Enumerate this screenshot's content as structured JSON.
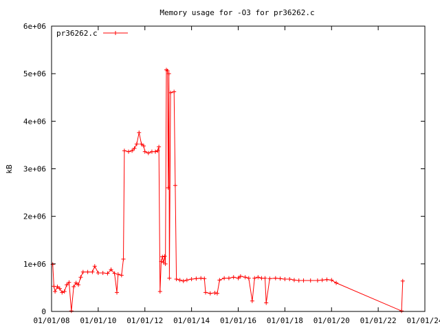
{
  "chart_data": {
    "type": "line",
    "title": "Memory usage for -O3 for pr36262.c",
    "xlabel": "",
    "ylabel": "kB",
    "x_ticks": [
      "01/01/08",
      "01/01/10",
      "01/01/12",
      "01/01/14",
      "01/01/16",
      "01/01/18",
      "01/01/20",
      "01/01/22",
      "01/01/24"
    ],
    "y_ticks": [
      "0",
      "1e+06",
      "2e+06",
      "3e+06",
      "4e+06",
      "5e+06",
      "6e+06"
    ],
    "xlim": [
      2008,
      2024
    ],
    "ylim": [
      0,
      6000000
    ],
    "grid": false,
    "legend_position": "top-left",
    "series": [
      {
        "name": "pr36262.c",
        "color": "#ff0000",
        "marker": "plus",
        "points": [
          [
            2008.05,
            990000
          ],
          [
            2008.1,
            530000
          ],
          [
            2008.15,
            420000
          ],
          [
            2008.25,
            520000
          ],
          [
            2008.35,
            480000
          ],
          [
            2008.45,
            400000
          ],
          [
            2008.55,
            420000
          ],
          [
            2008.65,
            560000
          ],
          [
            2008.75,
            610000
          ],
          [
            2008.85,
            10000
          ],
          [
            2008.95,
            520000
          ],
          [
            2009.05,
            600000
          ],
          [
            2009.15,
            560000
          ],
          [
            2009.25,
            720000
          ],
          [
            2009.35,
            830000
          ],
          [
            2009.55,
            830000
          ],
          [
            2009.75,
            830000
          ],
          [
            2009.85,
            950000
          ],
          [
            2010.0,
            810000
          ],
          [
            2010.2,
            810000
          ],
          [
            2010.4,
            800000
          ],
          [
            2010.55,
            880000
          ],
          [
            2010.7,
            800000
          ],
          [
            2010.8,
            400000
          ],
          [
            2010.85,
            780000
          ],
          [
            2011.0,
            760000
          ],
          [
            2011.08,
            1100000
          ],
          [
            2011.12,
            3380000
          ],
          [
            2011.3,
            3360000
          ],
          [
            2011.45,
            3380000
          ],
          [
            2011.55,
            3430000
          ],
          [
            2011.65,
            3520000
          ],
          [
            2011.75,
            3760000
          ],
          [
            2011.85,
            3520000
          ],
          [
            2011.95,
            3480000
          ],
          [
            2012.0,
            3360000
          ],
          [
            2012.15,
            3330000
          ],
          [
            2012.3,
            3360000
          ],
          [
            2012.45,
            3360000
          ],
          [
            2012.55,
            3380000
          ],
          [
            2012.6,
            3460000
          ],
          [
            2012.65,
            420000
          ],
          [
            2012.7,
            1050000
          ],
          [
            2012.75,
            1150000
          ],
          [
            2012.8,
            1030000
          ],
          [
            2012.85,
            1160000
          ],
          [
            2012.88,
            1000000
          ],
          [
            2012.92,
            5080000
          ],
          [
            2012.97,
            5060000
          ],
          [
            2013.0,
            2600000
          ],
          [
            2013.03,
            5000000
          ],
          [
            2013.05,
            700000
          ],
          [
            2013.1,
            4600000
          ],
          [
            2013.25,
            4620000
          ],
          [
            2013.3,
            2650000
          ],
          [
            2013.35,
            680000
          ],
          [
            2013.5,
            660000
          ],
          [
            2013.65,
            640000
          ],
          [
            2013.8,
            660000
          ],
          [
            2014.0,
            680000
          ],
          [
            2014.2,
            690000
          ],
          [
            2014.4,
            700000
          ],
          [
            2014.55,
            690000
          ],
          [
            2014.6,
            400000
          ],
          [
            2014.8,
            380000
          ],
          [
            2015.0,
            390000
          ],
          [
            2015.1,
            380000
          ],
          [
            2015.2,
            660000
          ],
          [
            2015.4,
            700000
          ],
          [
            2015.6,
            700000
          ],
          [
            2015.8,
            720000
          ],
          [
            2016.0,
            700000
          ],
          [
            2016.1,
            740000
          ],
          [
            2016.3,
            720000
          ],
          [
            2016.45,
            700000
          ],
          [
            2016.6,
            220000
          ],
          [
            2016.7,
            700000
          ],
          [
            2016.85,
            720000
          ],
          [
            2017.0,
            700000
          ],
          [
            2017.15,
            700000
          ],
          [
            2017.2,
            180000
          ],
          [
            2017.35,
            690000
          ],
          [
            2017.6,
            700000
          ],
          [
            2017.8,
            690000
          ],
          [
            2018.0,
            680000
          ],
          [
            2018.2,
            680000
          ],
          [
            2018.4,
            660000
          ],
          [
            2018.6,
            650000
          ],
          [
            2018.8,
            650000
          ],
          [
            2019.1,
            650000
          ],
          [
            2019.4,
            650000
          ],
          [
            2019.6,
            660000
          ],
          [
            2019.8,
            670000
          ],
          [
            2020.0,
            660000
          ],
          [
            2020.2,
            600000
          ],
          [
            2023.0,
            10000
          ],
          [
            2023.05,
            640000
          ]
        ]
      }
    ]
  }
}
